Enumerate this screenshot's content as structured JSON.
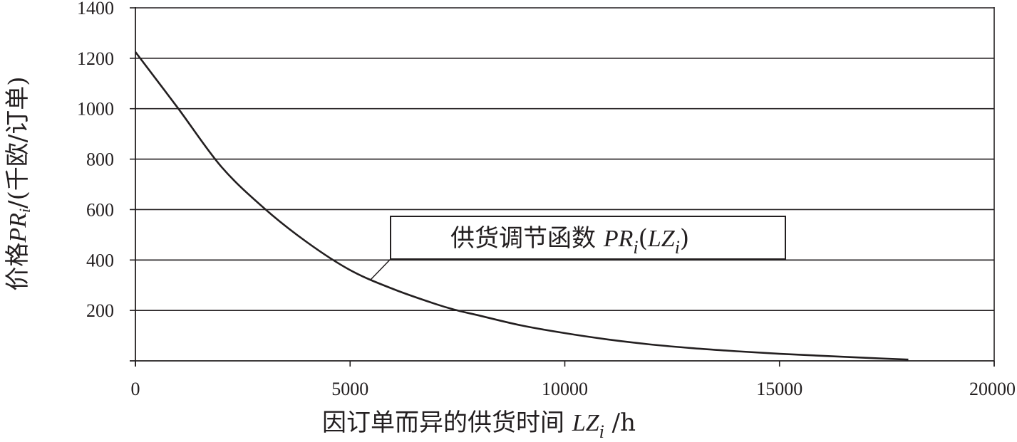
{
  "chart_data": {
    "type": "line",
    "title": "",
    "xlabel": {
      "prefix": "因订单而异的供货时间 ",
      "var": "LZ",
      "sub": "i",
      "suffix": " /h"
    },
    "ylabel": {
      "prefix": "价格",
      "var": "PR",
      "sub": "i",
      "suffix": "/(千欧/订单)"
    },
    "xlim": [
      0,
      20000
    ],
    "ylim": [
      0,
      1400
    ],
    "xticks": [
      0,
      5000,
      10000,
      15000,
      20000
    ],
    "yticks": [
      200,
      400,
      600,
      800,
      1000,
      1200,
      1400
    ],
    "grid": "horizontal",
    "series": [
      {
        "name": "供货调节函数 PRi(LZi)",
        "color": "#231f20",
        "x": [
          0,
          1000,
          2000,
          3000,
          4000,
          5000,
          6000,
          7000,
          7500,
          8000,
          9000,
          10000,
          11000,
          12000,
          13000,
          14000,
          15000,
          16000,
          17000,
          18000
        ],
        "y": [
          1225,
          1000,
          770,
          605,
          470,
          360,
          285,
          225,
          200,
          180,
          140,
          110,
          85,
          65,
          50,
          38,
          28,
          20,
          12,
          5
        ]
      }
    ],
    "legend": {
      "label_prefix": "供货调节函数 ",
      "var1": "PR",
      "sub1": "i",
      "mid": "(",
      "var2": "LZ",
      "sub2": "i",
      "end": ")",
      "placement": "center"
    }
  }
}
